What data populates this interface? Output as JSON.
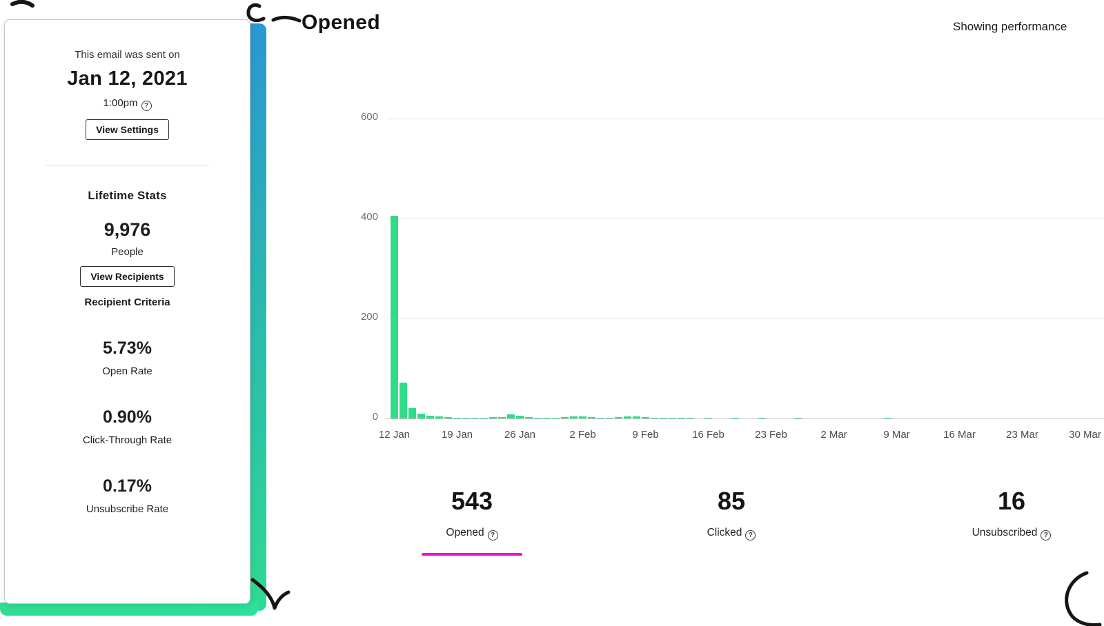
{
  "sidebar": {
    "sent_label": "This email was sent on",
    "sent_date": "Jan 12, 2021",
    "sent_time": "1:00pm",
    "view_settings_label": "View Settings",
    "lifetime_stats_title": "Lifetime Stats",
    "people_count": "9,976",
    "people_label": "People",
    "view_recipients_label": "View Recipients",
    "recipient_criteria_label": "Recipient Criteria",
    "stats": [
      {
        "value": "5.73%",
        "label": "Open Rate"
      },
      {
        "value": "0.90%",
        "label": "Click-Through Rate"
      },
      {
        "value": "0.17%",
        "label": "Unsubscribe Rate"
      }
    ]
  },
  "header": {
    "title": "Opened",
    "showing_text": "Showing performance"
  },
  "metrics": [
    {
      "value": "543",
      "label": "Opened",
      "active": true
    },
    {
      "value": "85",
      "label": "Clicked",
      "active": false
    },
    {
      "value": "16",
      "label": "Unsubscribed",
      "active": false
    }
  ],
  "icons": {
    "help_char": "?"
  },
  "colors": {
    "bar_green": "#2edd86",
    "accent_magenta": "#f012d0",
    "gradient_top_blue": "#2a97d3",
    "gradient_bottom_green": "#2eda92",
    "annotation_black": "#161616"
  },
  "chart_data": {
    "type": "bar",
    "title": "Opened",
    "xlabel": "",
    "ylabel": "",
    "ylim": [
      0,
      600
    ],
    "grid": true,
    "y_tick_values": [
      0,
      200,
      400,
      600
    ],
    "y_tick_labels": [
      "0",
      "200",
      "400",
      "600"
    ],
    "x_tick_labels": [
      "12 Jan",
      "19 Jan",
      "26 Jan",
      "2 Feb",
      "9 Feb",
      "16 Feb",
      "23 Feb",
      "2 Mar",
      "9 Mar",
      "16 Mar",
      "23 Mar",
      "30 Mar"
    ],
    "series_start": "12 Jan",
    "values_daily": [
      405,
      72,
      21,
      10,
      6,
      4,
      3,
      2,
      2,
      2,
      2,
      3,
      3,
      8,
      6,
      3,
      2,
      2,
      2,
      3,
      4,
      4,
      3,
      2,
      2,
      3,
      4,
      4,
      3,
      2,
      1,
      1,
      1,
      1,
      0,
      1,
      0,
      0,
      1,
      0,
      0,
      1,
      0,
      0,
      0,
      1,
      0,
      0,
      0,
      0,
      0,
      0,
      0,
      0,
      0,
      1,
      0,
      0,
      0,
      0,
      0,
      0,
      0,
      0,
      0,
      0,
      0,
      0,
      0,
      0,
      0,
      0,
      0,
      0,
      0,
      0,
      0,
      0,
      0,
      0
    ]
  }
}
